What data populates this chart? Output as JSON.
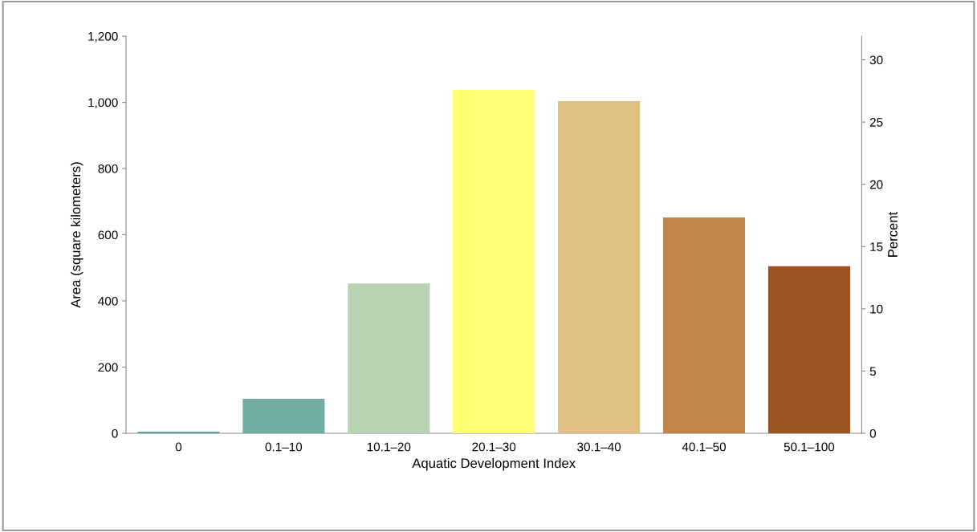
{
  "chart_data": {
    "type": "bar",
    "xlabel": "Aquatic Development Index",
    "ylabel": "Area (square kilometers)",
    "y2label": "Percent",
    "categories": [
      "0",
      "0.1–10",
      "10.1–20",
      "20.1–30",
      "30.1–40",
      "40.1–50",
      "50.1–100"
    ],
    "values": [
      5,
      104,
      453,
      1038,
      1004,
      652,
      505
    ],
    "colors": [
      "#5f9e96",
      "#72ada3",
      "#b9d3b2",
      "#ffff73",
      "#e0c080",
      "#bf854a",
      "#9c531f"
    ],
    "ylim": [
      0,
      1200
    ],
    "yticks": [
      0,
      {
        "value": 200,
        "label": "200"
      },
      {
        "value": 400,
        "label": "400"
      },
      {
        "value": 600,
        "label": "600"
      },
      {
        "value": 800,
        "label": "800"
      },
      {
        "value": 1000,
        "label": "1,000"
      },
      {
        "value": 1200,
        "label": "1,200"
      }
    ],
    "y2lim": [
      0,
      31.9
    ],
    "y2ticks": [
      0,
      5,
      10,
      15,
      20,
      25,
      30
    ],
    "grid": false,
    "legend": false
  }
}
